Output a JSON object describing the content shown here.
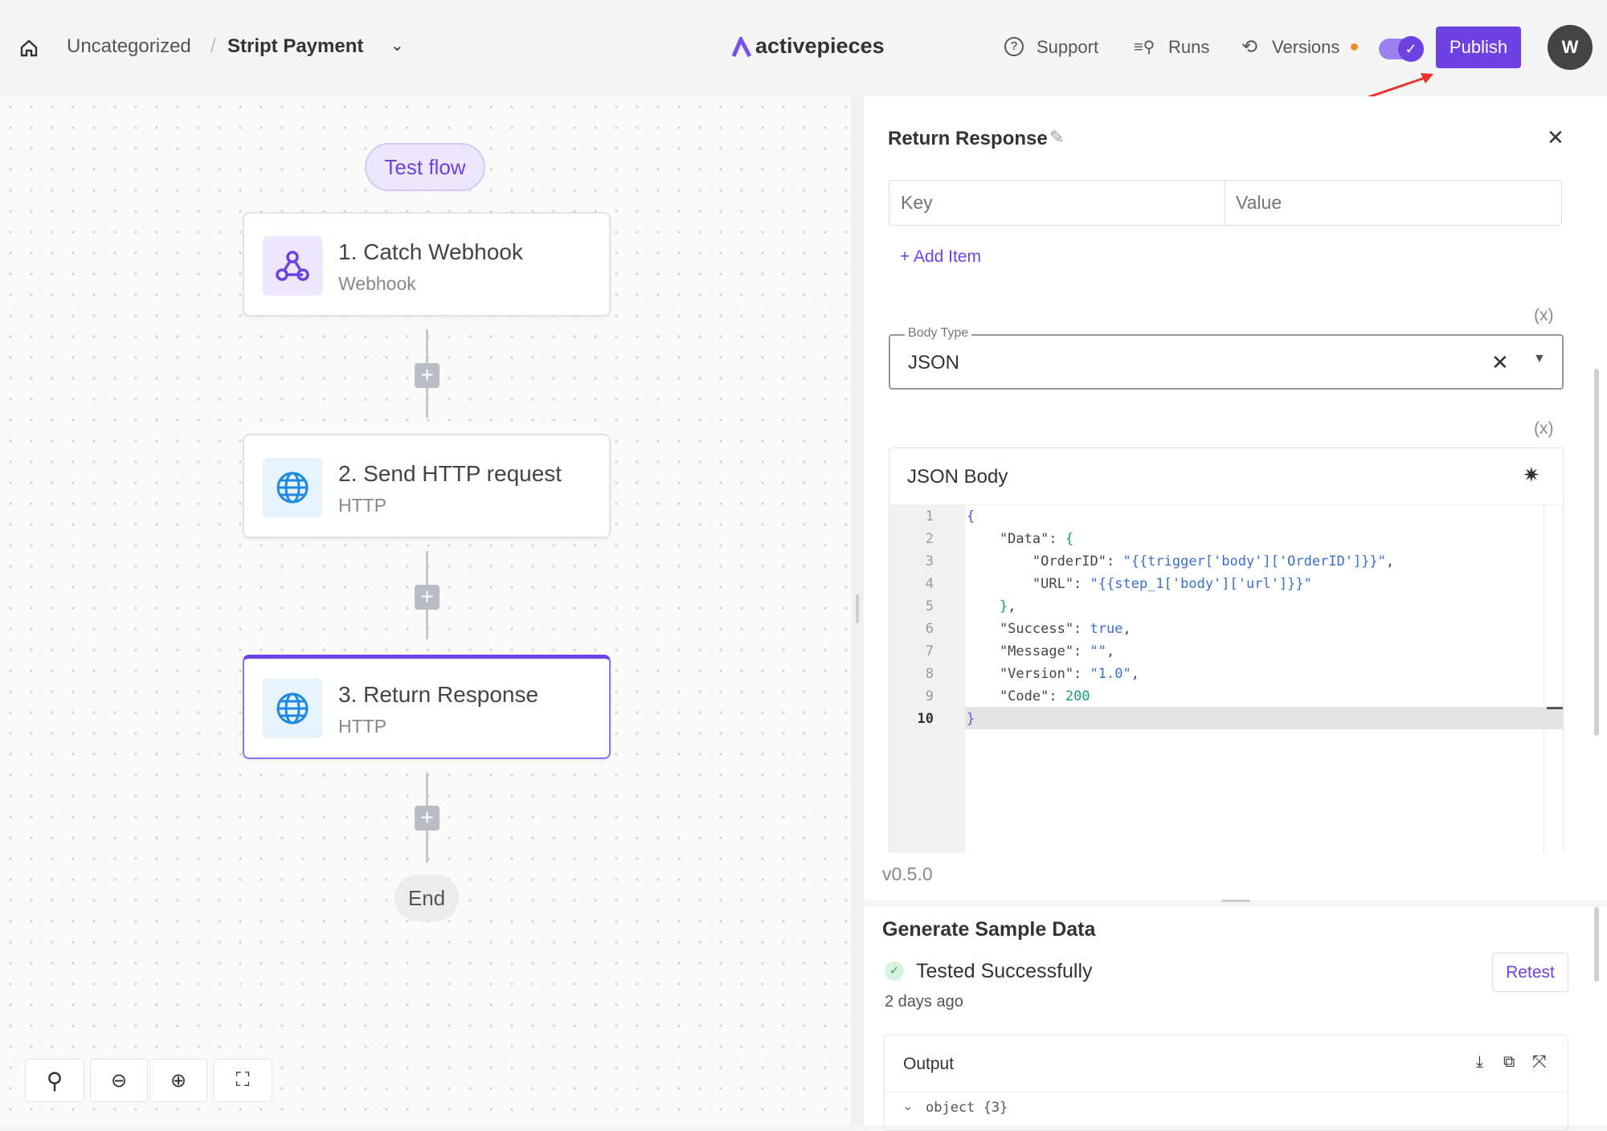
{
  "header": {
    "breadcrumb_folder": "Uncategorized",
    "separator": "/",
    "flow_name": "Stript Payment",
    "logo_text": "activepieces",
    "support": "Support",
    "runs": "Runs",
    "versions": "Versions",
    "publish": "Publish",
    "avatar": "W",
    "accent": "#6e41e2"
  },
  "canvas": {
    "test_flow": "Test flow",
    "steps": [
      {
        "title": "1. Catch Webhook",
        "subtitle": "Webhook",
        "icon": "webhook-icon"
      },
      {
        "title": "2. Send HTTP request",
        "subtitle": "HTTP",
        "icon": "globe-icon"
      },
      {
        "title": "3. Return Response",
        "subtitle": "HTTP",
        "icon": "globe-icon"
      }
    ],
    "add_step": "+",
    "end": "End"
  },
  "panel": {
    "title": "Return Response",
    "key_placeholder": "Key",
    "value_placeholder": "Value",
    "add_item": "+ Add Item",
    "var_toggle": "(x)",
    "body_type_label": "Body Type",
    "body_type_value": "JSON",
    "json_body_label": "JSON Body",
    "line_numbers": [
      "1",
      "2",
      "3",
      "4",
      "5",
      "6",
      "7",
      "8",
      "9",
      "10"
    ],
    "version": "v0.5.0"
  },
  "sample": {
    "title": "Generate Sample Data",
    "status": "Tested Successfully",
    "time": "2 days ago",
    "retest": "Retest",
    "output_label": "Output",
    "output_tree": "object {3}"
  }
}
